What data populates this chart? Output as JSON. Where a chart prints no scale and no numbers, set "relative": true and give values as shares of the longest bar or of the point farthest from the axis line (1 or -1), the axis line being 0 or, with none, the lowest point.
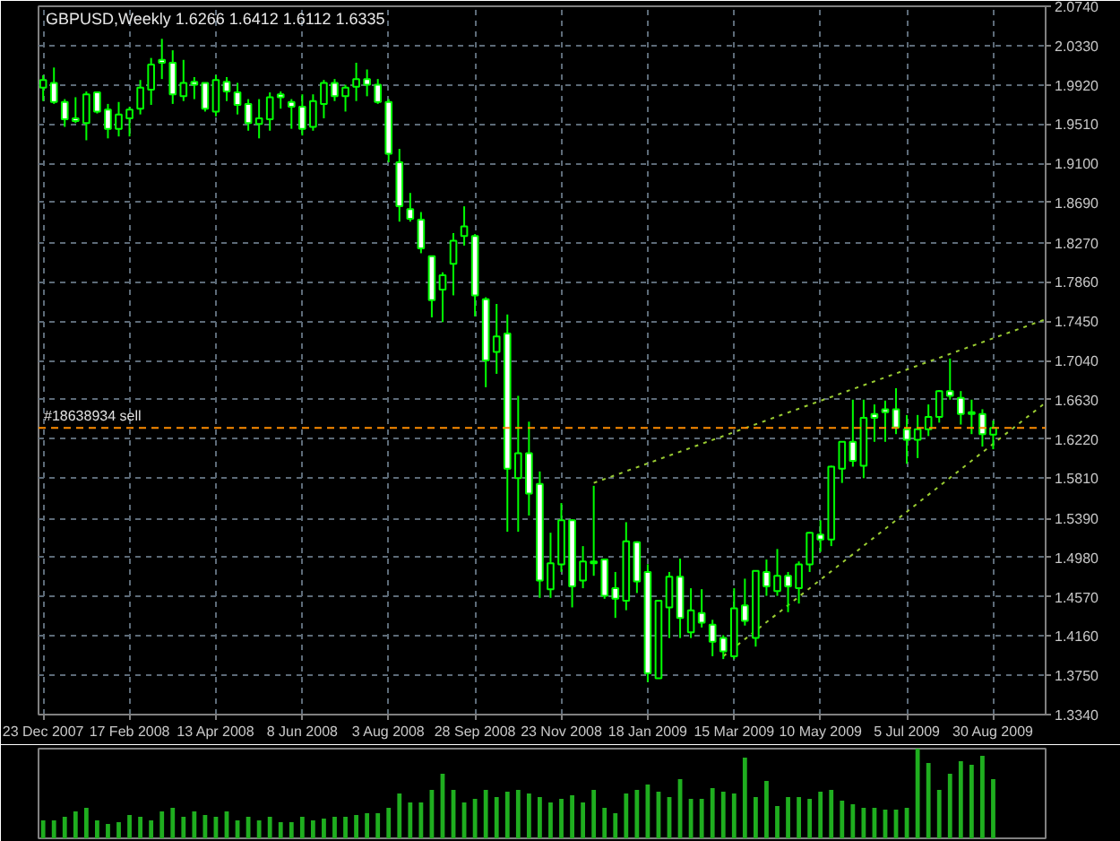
{
  "chart_data": [
    {
      "type": "candlestick",
      "title": "GBPUSD,Weekly  1.6266 1.6412 1.6112 1.6335",
      "color": "#00ff00",
      "x": [
        "2007-12-23",
        "2007-12-30",
        "2008-01-06",
        "2008-01-13",
        "2008-01-20",
        "2008-01-27",
        "2008-02-03",
        "2008-02-10",
        "2008-02-17",
        "2008-02-24",
        "2008-03-02",
        "2008-03-09",
        "2008-03-16",
        "2008-03-23",
        "2008-03-30",
        "2008-04-06",
        "2008-04-13",
        "2008-04-20",
        "2008-04-27",
        "2008-05-04",
        "2008-05-11",
        "2008-05-18",
        "2008-05-25",
        "2008-06-01",
        "2008-06-08",
        "2008-06-15",
        "2008-06-22",
        "2008-06-29",
        "2008-07-06",
        "2008-07-13",
        "2008-07-20",
        "2008-07-27",
        "2008-08-03",
        "2008-08-10",
        "2008-08-17",
        "2008-08-24",
        "2008-08-31",
        "2008-09-07",
        "2008-09-14",
        "2008-09-21",
        "2008-09-28",
        "2008-10-05",
        "2008-10-12",
        "2008-10-19",
        "2008-10-26",
        "2008-11-02",
        "2008-11-09",
        "2008-11-16",
        "2008-11-23",
        "2008-11-30",
        "2008-12-07",
        "2008-12-14",
        "2008-12-21",
        "2008-12-28",
        "2009-01-04",
        "2009-01-11",
        "2009-01-18",
        "2009-01-25",
        "2009-02-01",
        "2009-02-08",
        "2009-02-15",
        "2009-02-22",
        "2009-03-01",
        "2009-03-08",
        "2009-03-15",
        "2009-03-22",
        "2009-03-29",
        "2009-04-05",
        "2009-04-12",
        "2009-04-19",
        "2009-04-26",
        "2009-05-03",
        "2009-05-10",
        "2009-05-17",
        "2009-05-24",
        "2009-05-31",
        "2009-06-07",
        "2009-06-14",
        "2009-06-21",
        "2009-06-28",
        "2009-07-05",
        "2009-07-12",
        "2009-07-19",
        "2009-07-26",
        "2009-08-02",
        "2009-08-09",
        "2009-08-16",
        "2009-08-23",
        "2009-08-30"
      ],
      "ohlc": [
        [
          1.989,
          2.002,
          1.975,
          1.997
        ],
        [
          1.994,
          2.01,
          1.972,
          1.974
        ],
        [
          1.974,
          1.977,
          1.948,
          1.956
        ],
        [
          1.957,
          1.979,
          1.952,
          1.954
        ],
        [
          1.952,
          1.985,
          1.934,
          1.982
        ],
        [
          1.984,
          1.985,
          1.962,
          1.964
        ],
        [
          1.966,
          1.972,
          1.936,
          1.946
        ],
        [
          1.946,
          1.974,
          1.938,
          1.961
        ],
        [
          1.957,
          1.969,
          1.938,
          1.966
        ],
        [
          1.967,
          1.997,
          1.961,
          1.989
        ],
        [
          1.987,
          2.02,
          1.971,
          2.013
        ],
        [
          2.018,
          2.04,
          1.998,
          2.015
        ],
        [
          2.015,
          2.028,
          1.972,
          1.982
        ],
        [
          1.98,
          2.018,
          1.975,
          1.994
        ],
        [
          1.995,
          2.0,
          1.977,
          1.992
        ],
        [
          1.994,
          1.994,
          1.964,
          1.967
        ],
        [
          1.964,
          2.002,
          1.959,
          1.997
        ],
        [
          1.995,
          2.0,
          1.975,
          1.985
        ],
        [
          1.984,
          1.994,
          1.961,
          1.971
        ],
        [
          1.972,
          1.977,
          1.944,
          1.952
        ],
        [
          1.951,
          1.977,
          1.936,
          1.957
        ],
        [
          1.956,
          1.984,
          1.944,
          1.979
        ],
        [
          1.982,
          1.985,
          1.967,
          1.979
        ],
        [
          1.974,
          1.977,
          1.946,
          1.969
        ],
        [
          1.969,
          1.982,
          1.939,
          1.946
        ],
        [
          1.948,
          1.982,
          1.944,
          1.975
        ],
        [
          1.972,
          1.997,
          1.957,
          1.994
        ],
        [
          1.994,
          1.998,
          1.975,
          1.98
        ],
        [
          1.98,
          1.992,
          1.964,
          1.989
        ],
        [
          1.99,
          2.015,
          1.975,
          1.998
        ],
        [
          1.998,
          2.008,
          1.98,
          1.992
        ],
        [
          1.992,
          1.998,
          1.972,
          1.974
        ],
        [
          1.974,
          1.977,
          1.911,
          1.92
        ],
        [
          1.911,
          1.925,
          1.849,
          1.865
        ],
        [
          1.862,
          1.879,
          1.849,
          1.852
        ],
        [
          1.851,
          1.859,
          1.816,
          1.821
        ],
        [
          1.813,
          1.813,
          1.749,
          1.767
        ],
        [
          1.778,
          1.796,
          1.744,
          1.793
        ],
        [
          1.805,
          1.837,
          1.772,
          1.829
        ],
        [
          1.834,
          1.865,
          1.824,
          1.844
        ],
        [
          1.834,
          1.836,
          1.75,
          1.772
        ],
        [
          1.768,
          1.77,
          1.676,
          1.704
        ],
        [
          1.713,
          1.763,
          1.69,
          1.729
        ],
        [
          1.732,
          1.752,
          1.525,
          1.591
        ],
        [
          1.581,
          1.667,
          1.525,
          1.607
        ],
        [
          1.607,
          1.64,
          1.542,
          1.565
        ],
        [
          1.575,
          1.588,
          1.456,
          1.474
        ],
        [
          1.465,
          1.524,
          1.456,
          1.492
        ],
        [
          1.491,
          1.555,
          1.483,
          1.537
        ],
        [
          1.537,
          1.538,
          1.446,
          1.468
        ],
        [
          1.474,
          1.51,
          1.466,
          1.494
        ],
        [
          1.494,
          1.573,
          1.479,
          1.492
        ],
        [
          1.496,
          1.496,
          1.455,
          1.458
        ],
        [
          1.466,
          1.483,
          1.435,
          1.455
        ],
        [
          1.453,
          1.535,
          1.443,
          1.515
        ],
        [
          1.514,
          1.515,
          1.461,
          1.473
        ],
        [
          1.483,
          1.491,
          1.368,
          1.377
        ],
        [
          1.372,
          1.453,
          1.372,
          1.453
        ],
        [
          1.446,
          1.483,
          1.414,
          1.478
        ],
        [
          1.478,
          1.497,
          1.414,
          1.435
        ],
        [
          1.42,
          1.466,
          1.414,
          1.443
        ],
        [
          1.44,
          1.465,
          1.425,
          1.43
        ],
        [
          1.428,
          1.433,
          1.395,
          1.41
        ],
        [
          1.414,
          1.417,
          1.392,
          1.4
        ],
        [
          1.395,
          1.466,
          1.392,
          1.445
        ],
        [
          1.448,
          1.476,
          1.427,
          1.432
        ],
        [
          1.414,
          1.484,
          1.405,
          1.484
        ],
        [
          1.483,
          1.496,
          1.458,
          1.468
        ],
        [
          1.463,
          1.507,
          1.458,
          1.479
        ],
        [
          1.479,
          1.483,
          1.441,
          1.468
        ],
        [
          1.466,
          1.494,
          1.45,
          1.491
        ],
        [
          1.491,
          1.525,
          1.483,
          1.524
        ],
        [
          1.522,
          1.537,
          1.504,
          1.517
        ],
        [
          1.517,
          1.594,
          1.51,
          1.593
        ],
        [
          1.591,
          1.619,
          1.576,
          1.619
        ],
        [
          1.619,
          1.663,
          1.593,
          1.599
        ],
        [
          1.594,
          1.663,
          1.581,
          1.644
        ],
        [
          1.648,
          1.658,
          1.619,
          1.644
        ],
        [
          1.653,
          1.662,
          1.619,
          1.65
        ],
        [
          1.653,
          1.675,
          1.627,
          1.634
        ],
        [
          1.632,
          1.647,
          1.596,
          1.621
        ],
        [
          1.621,
          1.647,
          1.602,
          1.632
        ],
        [
          1.632,
          1.658,
          1.625,
          1.645
        ],
        [
          1.645,
          1.673,
          1.639,
          1.672
        ],
        [
          1.672,
          1.706,
          1.663,
          1.667
        ],
        [
          1.665,
          1.672,
          1.637,
          1.648
        ],
        [
          1.648,
          1.663,
          1.627,
          1.65
        ],
        [
          1.648,
          1.653,
          1.614,
          1.627
        ],
        [
          1.6266,
          1.6412,
          1.6112,
          1.6335
        ]
      ],
      "series": [
        {
          "type": "line",
          "x": [
            "2008-12-14",
            "2009-10-03"
          ],
          "values": [
            1.576,
            1.747
          ],
          "color": "#9acd32",
          "line_style": "dotted"
        },
        {
          "type": "line",
          "x": [
            "2009-03-08",
            "2009-10-03"
          ],
          "values": [
            1.395,
            1.66
          ],
          "color": "#9acd32",
          "line_style": "dotted"
        }
      ],
      "ref_lines": [
        {
          "axis": "y",
          "value": 1.6335,
          "label": "#18638934 sell",
          "color": "#ff8c00",
          "line_style": "dashed"
        }
      ],
      "xlim": [
        "2007-12-20",
        "2009-10-03"
      ],
      "xticks": [
        {
          "value": "2007-12-23",
          "label": "23 Dec 2007"
        },
        {
          "value": "2008-02-17",
          "label": "17 Feb 2008"
        },
        {
          "value": "2008-04-13",
          "label": "13 Apr 2008"
        },
        {
          "value": "2008-06-08",
          "label": "8 Jun 2008"
        },
        {
          "value": "2008-08-03",
          "label": "3 Aug 2008"
        },
        {
          "value": "2008-09-28",
          "label": "28 Sep 2008"
        },
        {
          "value": "2008-11-23",
          "label": "23 Nov 2008"
        },
        {
          "value": "2009-01-18",
          "label": "18 Jan 2009"
        },
        {
          "value": "2009-03-15",
          "label": "15 Mar 2009"
        },
        {
          "value": "2009-05-10",
          "label": "10 May 2009"
        },
        {
          "value": "2009-07-05",
          "label": "5 Jul 2009"
        },
        {
          "value": "2009-08-30",
          "label": "30 Aug 2009"
        }
      ],
      "ylim": [
        1.334,
        2.074
      ],
      "yticks": [
        {
          "value": 1.334,
          "label": "1.3340"
        },
        {
          "value": 1.375,
          "label": "1.3750"
        },
        {
          "value": 1.416,
          "label": "1.4160"
        },
        {
          "value": 1.457,
          "label": "1.4570"
        },
        {
          "value": 1.498,
          "label": "1.4980"
        },
        {
          "value": 1.539,
          "label": "1.5390"
        },
        {
          "value": 1.581,
          "label": "1.5810"
        },
        {
          "value": 1.622,
          "label": "1.6220"
        },
        {
          "value": 1.663,
          "label": "1.6630"
        },
        {
          "value": 1.704,
          "label": "1.7040"
        },
        {
          "value": 1.745,
          "label": "1.7450"
        },
        {
          "value": 1.786,
          "label": "1.7860"
        },
        {
          "value": 1.827,
          "label": "1.8270"
        },
        {
          "value": 1.869,
          "label": "1.8690"
        },
        {
          "value": 1.91,
          "label": "1.9100"
        },
        {
          "value": 1.951,
          "label": "1.9510"
        },
        {
          "value": 1.992,
          "label": "1.9920"
        },
        {
          "value": 2.033,
          "label": "2.0330"
        },
        {
          "value": 2.074,
          "label": "2.0740"
        }
      ],
      "grid": true
    },
    {
      "type": "bar",
      "relative": true,
      "color": "#1fae1f",
      "categories": [
        null,
        null,
        null,
        null,
        null,
        null,
        null,
        null,
        null,
        null,
        null,
        null,
        null,
        null,
        null,
        null,
        null,
        null,
        null,
        null,
        null,
        null,
        null,
        null,
        null,
        null,
        null,
        null,
        null,
        null,
        null,
        null,
        null,
        null,
        null,
        null,
        null,
        null,
        null,
        null,
        null,
        null,
        null,
        null,
        null,
        null,
        null,
        null,
        null,
        null,
        null,
        null,
        null,
        null,
        null,
        null,
        null,
        null,
        null,
        null,
        null,
        null,
        null,
        null,
        null,
        null,
        null,
        null,
        null,
        null,
        null,
        null,
        null,
        null,
        null,
        null,
        null,
        null,
        null,
        null,
        null,
        null,
        null,
        null,
        null,
        null,
        null,
        null,
        null
      ],
      "values": [
        0.2,
        0.2,
        0.24,
        0.3,
        0.34,
        0.2,
        0.16,
        0.18,
        0.26,
        0.24,
        0.2,
        0.3,
        0.34,
        0.24,
        0.3,
        0.26,
        0.24,
        0.3,
        0.2,
        0.24,
        0.2,
        0.24,
        0.18,
        0.18,
        0.24,
        0.2,
        0.22,
        0.24,
        0.24,
        0.26,
        0.28,
        0.28,
        0.34,
        0.5,
        0.4,
        0.4,
        0.54,
        0.72,
        0.54,
        0.4,
        0.44,
        0.54,
        0.46,
        0.52,
        0.54,
        0.5,
        0.46,
        0.4,
        0.44,
        0.48,
        0.4,
        0.54,
        0.34,
        0.28,
        0.5,
        0.54,
        0.6,
        0.52,
        0.46,
        0.66,
        0.44,
        0.44,
        0.56,
        0.52,
        0.5,
        0.9,
        0.46,
        0.64,
        0.36,
        0.46,
        0.46,
        0.44,
        0.52,
        0.54,
        0.42,
        0.38,
        0.34,
        0.34,
        0.32,
        0.32,
        0.34,
        1,
        0.84,
        0.54,
        0.72,
        0.86,
        0.82,
        0.92,
        0.66
      ]
    }
  ]
}
